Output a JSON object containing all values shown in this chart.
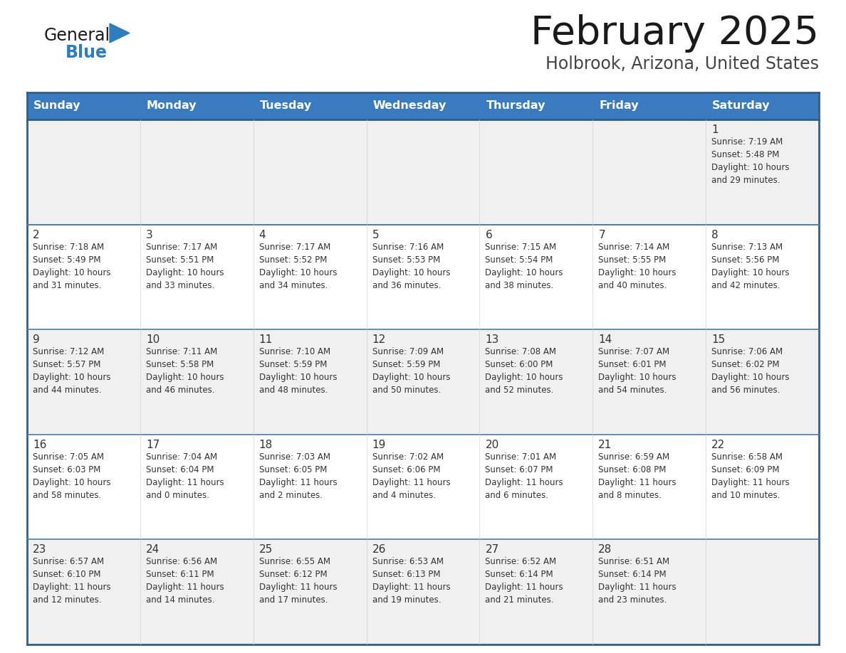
{
  "title": "February 2025",
  "subtitle": "Holbrook, Arizona, United States",
  "header_color": "#3a7abf",
  "header_text_color": "#ffffff",
  "cell_bg_white": "#ffffff",
  "cell_bg_gray": "#f0f0f0",
  "border_color": "#2d5f8a",
  "row_line_color": "#4a7faa",
  "text_color": "#333333",
  "days_of_week": [
    "Sunday",
    "Monday",
    "Tuesday",
    "Wednesday",
    "Thursday",
    "Friday",
    "Saturday"
  ],
  "weeks": [
    [
      {
        "day": "",
        "info": ""
      },
      {
        "day": "",
        "info": ""
      },
      {
        "day": "",
        "info": ""
      },
      {
        "day": "",
        "info": ""
      },
      {
        "day": "",
        "info": ""
      },
      {
        "day": "",
        "info": ""
      },
      {
        "day": "1",
        "info": "Sunrise: 7:19 AM\nSunset: 5:48 PM\nDaylight: 10 hours\nand 29 minutes."
      }
    ],
    [
      {
        "day": "2",
        "info": "Sunrise: 7:18 AM\nSunset: 5:49 PM\nDaylight: 10 hours\nand 31 minutes."
      },
      {
        "day": "3",
        "info": "Sunrise: 7:17 AM\nSunset: 5:51 PM\nDaylight: 10 hours\nand 33 minutes."
      },
      {
        "day": "4",
        "info": "Sunrise: 7:17 AM\nSunset: 5:52 PM\nDaylight: 10 hours\nand 34 minutes."
      },
      {
        "day": "5",
        "info": "Sunrise: 7:16 AM\nSunset: 5:53 PM\nDaylight: 10 hours\nand 36 minutes."
      },
      {
        "day": "6",
        "info": "Sunrise: 7:15 AM\nSunset: 5:54 PM\nDaylight: 10 hours\nand 38 minutes."
      },
      {
        "day": "7",
        "info": "Sunrise: 7:14 AM\nSunset: 5:55 PM\nDaylight: 10 hours\nand 40 minutes."
      },
      {
        "day": "8",
        "info": "Sunrise: 7:13 AM\nSunset: 5:56 PM\nDaylight: 10 hours\nand 42 minutes."
      }
    ],
    [
      {
        "day": "9",
        "info": "Sunrise: 7:12 AM\nSunset: 5:57 PM\nDaylight: 10 hours\nand 44 minutes."
      },
      {
        "day": "10",
        "info": "Sunrise: 7:11 AM\nSunset: 5:58 PM\nDaylight: 10 hours\nand 46 minutes."
      },
      {
        "day": "11",
        "info": "Sunrise: 7:10 AM\nSunset: 5:59 PM\nDaylight: 10 hours\nand 48 minutes."
      },
      {
        "day": "12",
        "info": "Sunrise: 7:09 AM\nSunset: 5:59 PM\nDaylight: 10 hours\nand 50 minutes."
      },
      {
        "day": "13",
        "info": "Sunrise: 7:08 AM\nSunset: 6:00 PM\nDaylight: 10 hours\nand 52 minutes."
      },
      {
        "day": "14",
        "info": "Sunrise: 7:07 AM\nSunset: 6:01 PM\nDaylight: 10 hours\nand 54 minutes."
      },
      {
        "day": "15",
        "info": "Sunrise: 7:06 AM\nSunset: 6:02 PM\nDaylight: 10 hours\nand 56 minutes."
      }
    ],
    [
      {
        "day": "16",
        "info": "Sunrise: 7:05 AM\nSunset: 6:03 PM\nDaylight: 10 hours\nand 58 minutes."
      },
      {
        "day": "17",
        "info": "Sunrise: 7:04 AM\nSunset: 6:04 PM\nDaylight: 11 hours\nand 0 minutes."
      },
      {
        "day": "18",
        "info": "Sunrise: 7:03 AM\nSunset: 6:05 PM\nDaylight: 11 hours\nand 2 minutes."
      },
      {
        "day": "19",
        "info": "Sunrise: 7:02 AM\nSunset: 6:06 PM\nDaylight: 11 hours\nand 4 minutes."
      },
      {
        "day": "20",
        "info": "Sunrise: 7:01 AM\nSunset: 6:07 PM\nDaylight: 11 hours\nand 6 minutes."
      },
      {
        "day": "21",
        "info": "Sunrise: 6:59 AM\nSunset: 6:08 PM\nDaylight: 11 hours\nand 8 minutes."
      },
      {
        "day": "22",
        "info": "Sunrise: 6:58 AM\nSunset: 6:09 PM\nDaylight: 11 hours\nand 10 minutes."
      }
    ],
    [
      {
        "day": "23",
        "info": "Sunrise: 6:57 AM\nSunset: 6:10 PM\nDaylight: 11 hours\nand 12 minutes."
      },
      {
        "day": "24",
        "info": "Sunrise: 6:56 AM\nSunset: 6:11 PM\nDaylight: 11 hours\nand 14 minutes."
      },
      {
        "day": "25",
        "info": "Sunrise: 6:55 AM\nSunset: 6:12 PM\nDaylight: 11 hours\nand 17 minutes."
      },
      {
        "day": "26",
        "info": "Sunrise: 6:53 AM\nSunset: 6:13 PM\nDaylight: 11 hours\nand 19 minutes."
      },
      {
        "day": "27",
        "info": "Sunrise: 6:52 AM\nSunset: 6:14 PM\nDaylight: 11 hours\nand 21 minutes."
      },
      {
        "day": "28",
        "info": "Sunrise: 6:51 AM\nSunset: 6:14 PM\nDaylight: 11 hours\nand 23 minutes."
      },
      {
        "day": "",
        "info": ""
      }
    ]
  ],
  "logo_general_color": "#1a1a1a",
  "logo_blue_color": "#2e7dbf",
  "logo_triangle_color": "#2e7dbf",
  "title_color": "#1a1a1a",
  "subtitle_color": "#444444"
}
